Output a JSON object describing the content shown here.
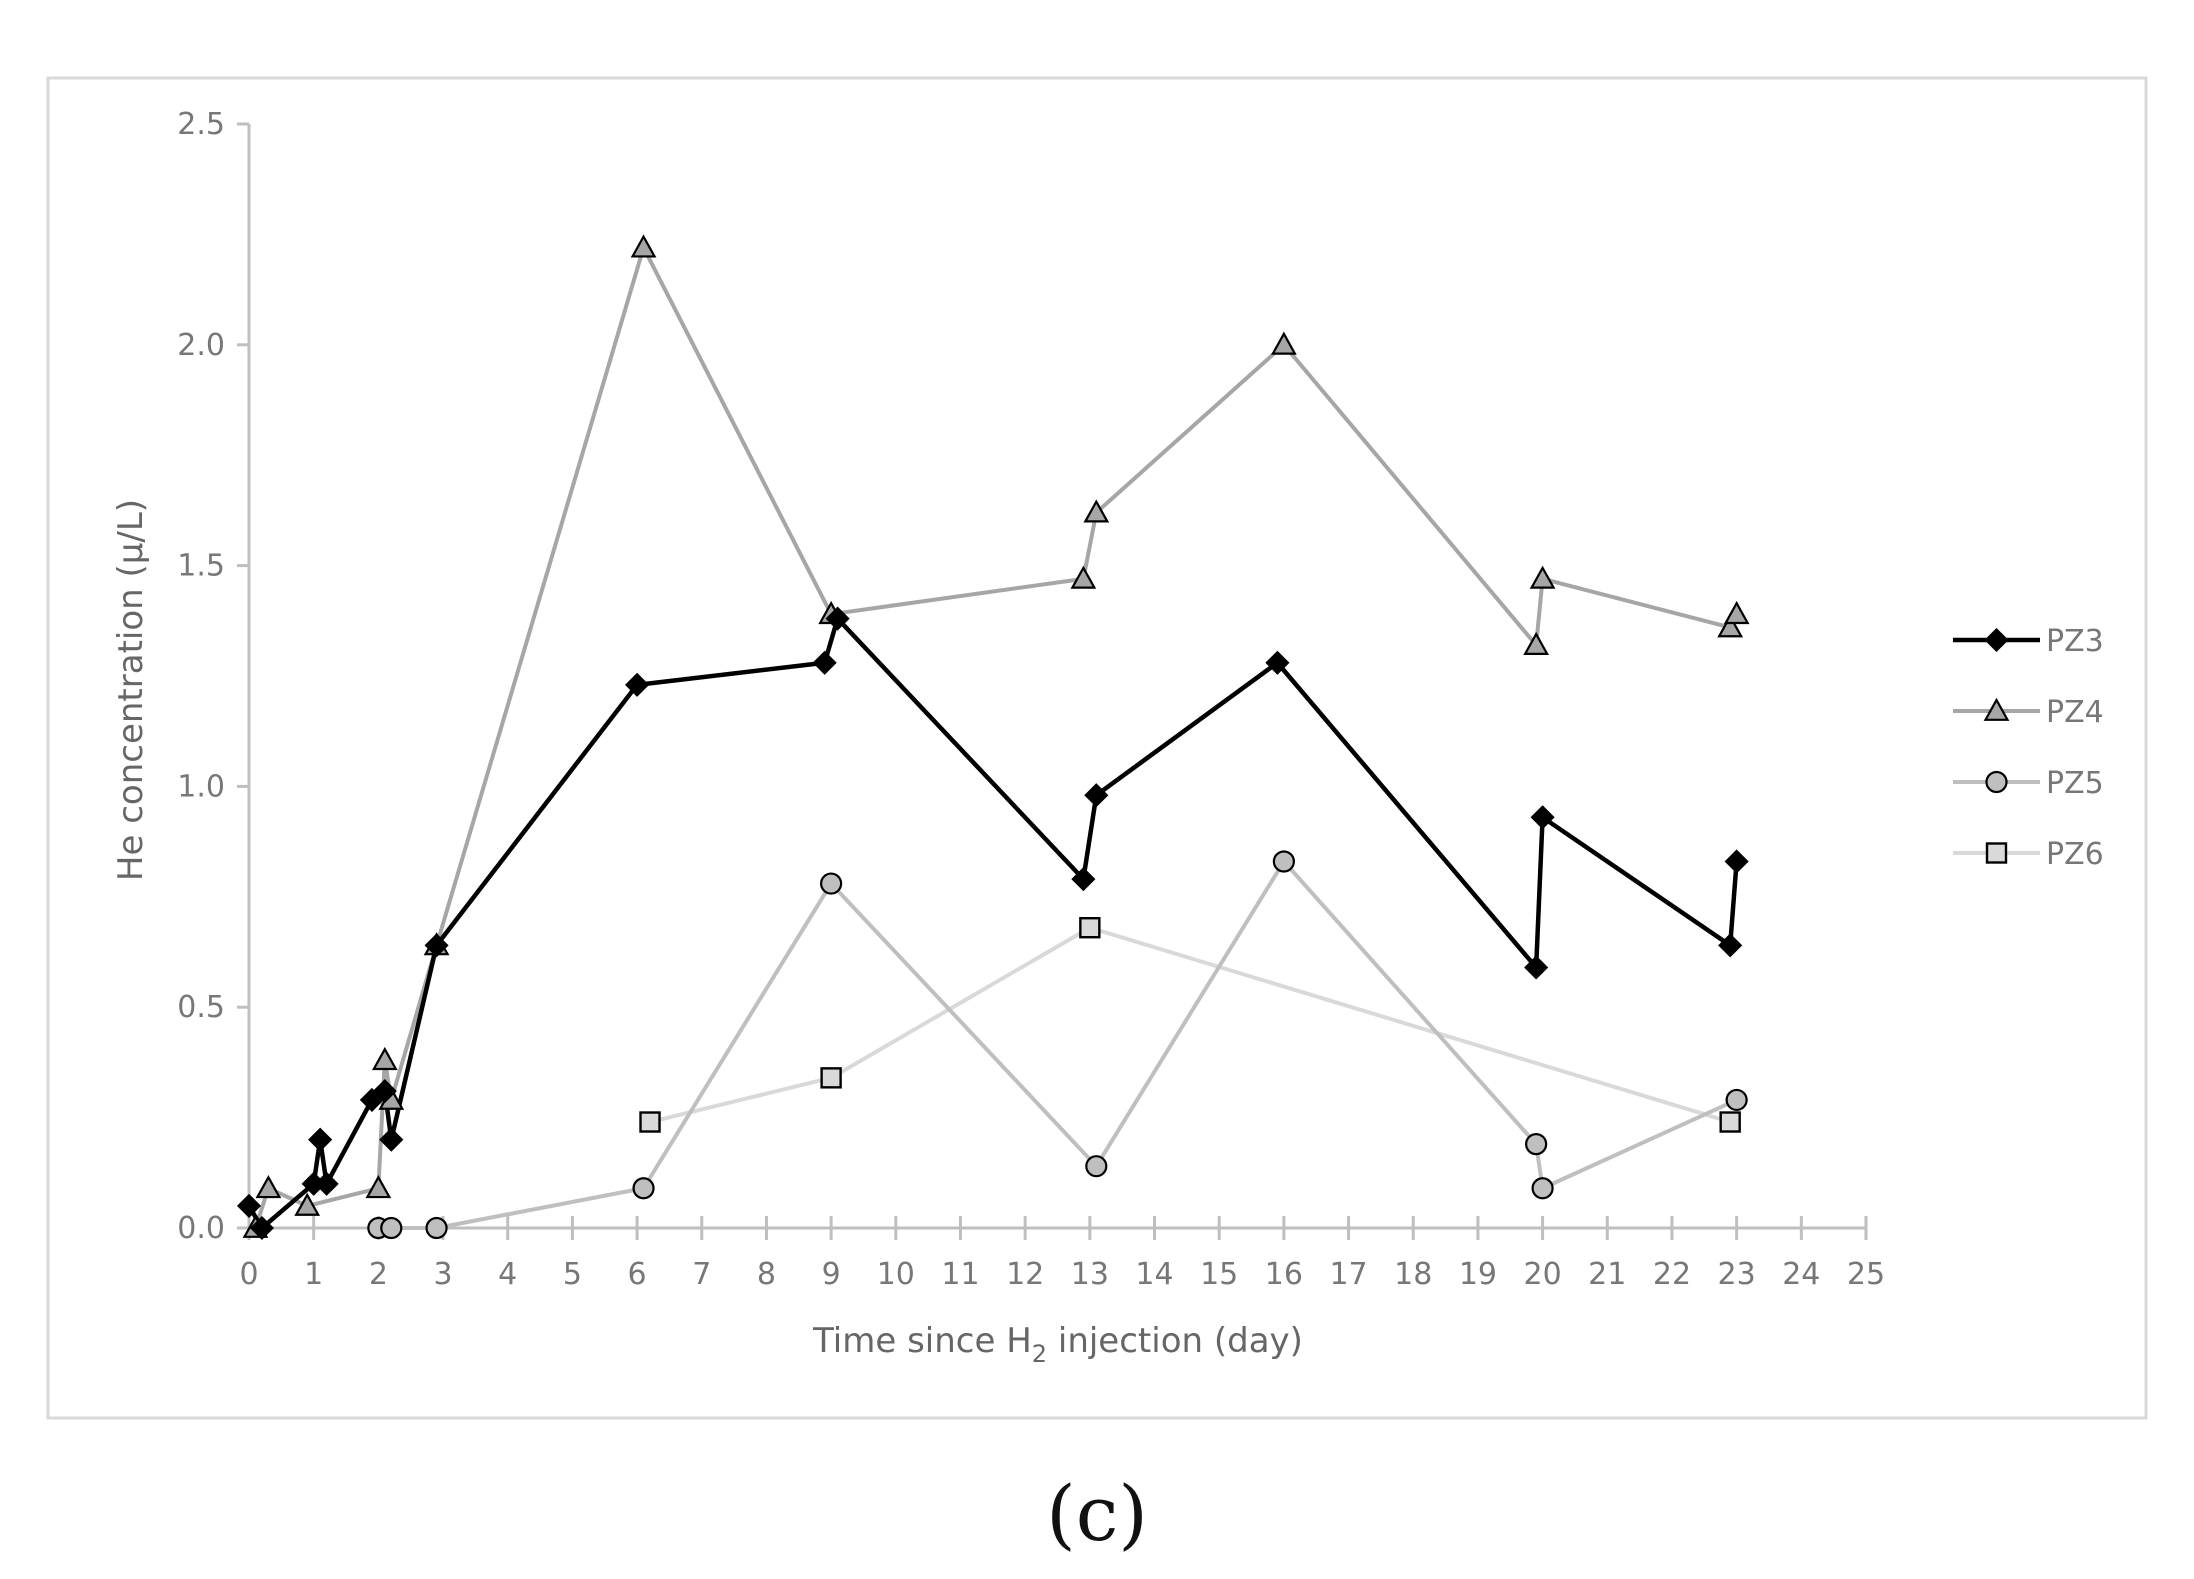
{
  "chart_data": {
    "type": "line",
    "xlabel_parts": [
      "Time since H",
      "2",
      " injection (day)"
    ],
    "ylabel": "He concentration (µ/L)",
    "xlim": [
      0,
      25
    ],
    "ylim": [
      0,
      2.5
    ],
    "x_ticks": [
      "0",
      "1",
      "2",
      "3",
      "4",
      "5",
      "6",
      "7",
      "8",
      "9",
      "10",
      "11",
      "12",
      "13",
      "14",
      "15",
      "16",
      "17",
      "18",
      "19",
      "20",
      "21",
      "22",
      "23",
      "24",
      "25"
    ],
    "y_ticks": [
      "0.0",
      "0.5",
      "1.0",
      "1.5",
      "2.0",
      "2.5"
    ],
    "legend_position": "right",
    "grid": false,
    "series": [
      {
        "name": "PZ3",
        "marker": "diamond",
        "line_color": "#000000",
        "marker_fill": "#000000",
        "x": [
          0.0,
          0.2,
          1.0,
          1.1,
          1.2,
          1.9,
          2.1,
          2.2,
          2.9,
          6.0,
          8.9,
          9.1,
          12.9,
          13.1,
          15.9,
          19.9,
          20.0,
          22.9,
          23.0
        ],
        "y": [
          0.05,
          0.0,
          0.1,
          0.2,
          0.1,
          0.29,
          0.31,
          0.2,
          0.64,
          1.23,
          1.28,
          1.38,
          0.79,
          0.98,
          1.28,
          0.59,
          0.93,
          0.64,
          0.83
        ]
      },
      {
        "name": "PZ4",
        "marker": "triangle",
        "line_color": "#a6a6a6",
        "marker_fill": "#a6a6a6",
        "x": [
          0.1,
          0.3,
          0.9,
          2.0,
          2.1,
          2.2,
          2.9,
          6.1,
          9.0,
          12.9,
          13.1,
          16.0,
          19.9,
          20.0,
          22.9,
          23.0
        ],
        "y": [
          0.0,
          0.09,
          0.05,
          0.09,
          0.38,
          0.29,
          0.64,
          2.22,
          1.39,
          1.47,
          1.62,
          2.0,
          1.32,
          1.47,
          1.36,
          1.39
        ]
      },
      {
        "name": "PZ5",
        "marker": "circle",
        "line_color": "#bfbfbf",
        "marker_fill": "#bfbfbf",
        "x": [
          2.0,
          2.2,
          2.9,
          6.1,
          9.0,
          13.1,
          16.0,
          19.9,
          20.0,
          23.0
        ],
        "y": [
          0.0,
          0.0,
          0.0,
          0.09,
          0.78,
          0.14,
          0.83,
          0.19,
          0.09,
          0.29
        ]
      },
      {
        "name": "PZ6",
        "marker": "square",
        "line_color": "#d9d9d9",
        "marker_fill": "#d9d9d9",
        "x": [
          6.2,
          9.0,
          13.0,
          22.9
        ],
        "y": [
          0.24,
          0.34,
          0.68,
          0.24
        ]
      }
    ]
  },
  "caption": "(c)"
}
